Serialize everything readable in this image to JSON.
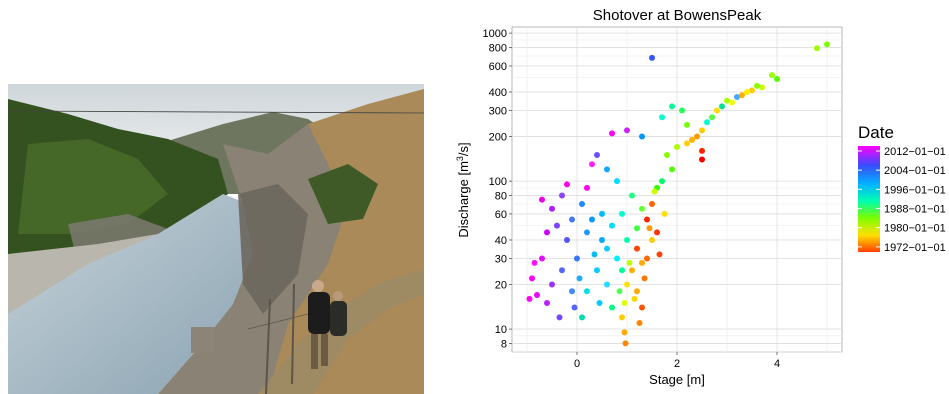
{
  "photo": {
    "colors": {
      "sky": "#dfe3e6",
      "river": "#a9bcc8",
      "forest": "#3b5a2a",
      "cliff": "#8b8478",
      "grass": "#a88a55"
    }
  },
  "chart_data": {
    "type": "scatter",
    "title": "Shotover at BowensPeak",
    "xlabel": "Stage [m]",
    "ylabel_main": "Discharge  [m",
    "ylabel_sup": "3",
    "ylabel_end": "/s]",
    "yscale": "log",
    "xlim": [
      -1.3,
      5.3
    ],
    "ylim": [
      7,
      1100
    ],
    "x_ticks": [
      0,
      2,
      4
    ],
    "x_tick_labels": [
      "0",
      "2",
      "4"
    ],
    "y_ticks": [
      8,
      10,
      20,
      30,
      40,
      60,
      80,
      100,
      200,
      300,
      400,
      600,
      800,
      1000
    ],
    "y_tick_labels": [
      "8",
      "10",
      "20",
      "30",
      "40",
      "60",
      "80",
      "100",
      "200",
      "300",
      "400",
      "600",
      "800",
      "1000"
    ],
    "grid": true,
    "legend": {
      "title": "Date",
      "placement": "right",
      "labels": [
        "2012−01−01",
        "2004−01−01",
        "1996−01−01",
        "1988−01−01",
        "1980−01−01",
        "1972−01−01"
      ],
      "gradient": [
        "#ff00ff",
        "#3b4bff",
        "#00b3ff",
        "#00ffb0",
        "#7dff00",
        "#ffe000",
        "#ff4000"
      ]
    },
    "points": [
      {
        "x": 5.0,
        "y": 840,
        "c": "#7dff00"
      },
      {
        "x": 4.8,
        "y": 790,
        "c": "#9dff00"
      },
      {
        "x": 4.0,
        "y": 490,
        "c": "#55ff00"
      },
      {
        "x": 3.9,
        "y": 520,
        "c": "#9dff00"
      },
      {
        "x": 3.7,
        "y": 430,
        "c": "#ccff00"
      },
      {
        "x": 3.5,
        "y": 410,
        "c": "#ffcc00"
      },
      {
        "x": 3.3,
        "y": 380,
        "c": "#ffb000"
      },
      {
        "x": 3.2,
        "y": 370,
        "c": "#44aaff"
      },
      {
        "x": 3.0,
        "y": 350,
        "c": "#aaff00"
      },
      {
        "x": 2.9,
        "y": 320,
        "c": "#00e38b"
      },
      {
        "x": 2.7,
        "y": 270,
        "c": "#55ff44"
      },
      {
        "x": 2.6,
        "y": 250,
        "c": "#00ffd0"
      },
      {
        "x": 2.5,
        "y": 220,
        "c": "#ffcc00"
      },
      {
        "x": 2.4,
        "y": 200,
        "c": "#ff9900"
      },
      {
        "x": 2.5,
        "y": 160,
        "c": "#ff2200"
      },
      {
        "x": 2.5,
        "y": 140,
        "c": "#ff0000"
      },
      {
        "x": 2.3,
        "y": 190,
        "c": "#ffb000"
      },
      {
        "x": 2.2,
        "y": 180,
        "c": "#ffd000"
      },
      {
        "x": 2.1,
        "y": 300,
        "c": "#22ff55"
      },
      {
        "x": 1.9,
        "y": 320,
        "c": "#00ff99"
      },
      {
        "x": 1.7,
        "y": 270,
        "c": "#00ffcc"
      },
      {
        "x": 1.5,
        "y": 680,
        "c": "#3355ff"
      },
      {
        "x": 1.3,
        "y": 200,
        "c": "#0099ff"
      },
      {
        "x": 1.0,
        "y": 220,
        "c": "#cc22ff"
      },
      {
        "x": 0.7,
        "y": 210,
        "c": "#ff00ff"
      },
      {
        "x": 0.3,
        "y": 130,
        "c": "#ff22ff"
      },
      {
        "x": 0.2,
        "y": 90,
        "c": "#ff00ee"
      },
      {
        "x": 0.4,
        "y": 150,
        "c": "#6655ff"
      },
      {
        "x": 0.6,
        "y": 120,
        "c": "#11aaff"
      },
      {
        "x": 0.8,
        "y": 100,
        "c": "#00ddff"
      },
      {
        "x": 1.9,
        "y": 120,
        "c": "#55ff00"
      },
      {
        "x": 1.7,
        "y": 100,
        "c": "#00ff66"
      },
      {
        "x": 1.6,
        "y": 90,
        "c": "#33ff00"
      },
      {
        "x": 1.8,
        "y": 150,
        "c": "#88ff00"
      },
      {
        "x": 1.5,
        "y": 70,
        "c": "#ff6600"
      },
      {
        "x": 1.4,
        "y": 55,
        "c": "#ff2200"
      },
      {
        "x": 1.2,
        "y": 35,
        "c": "#ff4400"
      },
      {
        "x": 1.1,
        "y": 25,
        "c": "#ffb000"
      },
      {
        "x": 1.0,
        "y": 20,
        "c": "#ffe000"
      },
      {
        "x": 0.95,
        "y": 15,
        "c": "#e0ff00"
      },
      {
        "x": 0.9,
        "y": 12,
        "c": "#ffcc00"
      },
      {
        "x": 0.95,
        "y": 9.5,
        "c": "#ffaa00"
      },
      {
        "x": 0.97,
        "y": 8,
        "c": "#ff8800"
      },
      {
        "x": 1.3,
        "y": 14,
        "c": "#ff5500"
      },
      {
        "x": 1.25,
        "y": 11,
        "c": "#ff8800"
      },
      {
        "x": 1.6,
        "y": 45,
        "c": "#ff3300"
      },
      {
        "x": 1.4,
        "y": 30,
        "c": "#ff6600"
      },
      {
        "x": 1.2,
        "y": 18,
        "c": "#ffaa00"
      },
      {
        "x": 0.9,
        "y": 25,
        "c": "#00ff99"
      },
      {
        "x": 0.8,
        "y": 30,
        "c": "#00eeff"
      },
      {
        "x": 0.5,
        "y": 40,
        "c": "#00aaff"
      },
      {
        "x": 0.4,
        "y": 25,
        "c": "#00ccff"
      },
      {
        "x": 0.2,
        "y": 18,
        "c": "#00e0e0"
      },
      {
        "x": 0.1,
        "y": 12,
        "c": "#00ddaa"
      },
      {
        "x": 0.7,
        "y": 14,
        "c": "#00ff88"
      },
      {
        "x": 0.6,
        "y": 20,
        "c": "#22ddff"
      },
      {
        "x": 0.0,
        "y": 30,
        "c": "#3377ff"
      },
      {
        "x": -0.2,
        "y": 40,
        "c": "#5555ff"
      },
      {
        "x": -0.4,
        "y": 50,
        "c": "#7a44ff"
      },
      {
        "x": -0.3,
        "y": 25,
        "c": "#5566ff"
      },
      {
        "x": -0.1,
        "y": 18,
        "c": "#4488ff"
      },
      {
        "x": -0.5,
        "y": 20,
        "c": "#9933ff"
      },
      {
        "x": -0.6,
        "y": 15,
        "c": "#bb22ff"
      },
      {
        "x": -0.8,
        "y": 17,
        "c": "#ee00ff"
      },
      {
        "x": -0.9,
        "y": 22,
        "c": "#ff00ff"
      },
      {
        "x": -0.7,
        "y": 30,
        "c": "#dd11ff"
      },
      {
        "x": -0.6,
        "y": 45,
        "c": "#cc00ff"
      },
      {
        "x": -0.7,
        "y": 75,
        "c": "#ee00ee"
      },
      {
        "x": -0.5,
        "y": 65,
        "c": "#aa22ff"
      },
      {
        "x": -0.3,
        "y": 80,
        "c": "#8844ff"
      },
      {
        "x": -0.2,
        "y": 95,
        "c": "#ff00ee"
      },
      {
        "x": 0.1,
        "y": 70,
        "c": "#2288ff"
      },
      {
        "x": 0.3,
        "y": 55,
        "c": "#0099ff"
      },
      {
        "x": 0.5,
        "y": 60,
        "c": "#00bbff"
      },
      {
        "x": 0.7,
        "y": 50,
        "c": "#00ddff"
      },
      {
        "x": 0.9,
        "y": 60,
        "c": "#00ffcc"
      },
      {
        "x": 1.1,
        "y": 80,
        "c": "#22ff88"
      },
      {
        "x": 1.3,
        "y": 65,
        "c": "#66ff33"
      },
      {
        "x": 1.5,
        "y": 40,
        "c": "#ffcc00"
      },
      {
        "x": 1.35,
        "y": 22,
        "c": "#ff7700"
      },
      {
        "x": 1.15,
        "y": 16,
        "c": "#ffd700"
      },
      {
        "x": 1.05,
        "y": 28,
        "c": "#bbff00"
      },
      {
        "x": 0.85,
        "y": 18,
        "c": "#55ff55"
      },
      {
        "x": 0.45,
        "y": 15,
        "c": "#00ccff"
      },
      {
        "x": -0.05,
        "y": 14,
        "c": "#5566ff"
      },
      {
        "x": -0.35,
        "y": 12,
        "c": "#7744ff"
      },
      {
        "x": -0.95,
        "y": 16,
        "c": "#ff00ff"
      },
      {
        "x": -0.85,
        "y": 28,
        "c": "#ff11ff"
      },
      {
        "x": 1.65,
        "y": 32,
        "c": "#ff4400"
      },
      {
        "x": 1.45,
        "y": 48,
        "c": "#ff9900"
      },
      {
        "x": 1.75,
        "y": 60,
        "c": "#ffdd00"
      },
      {
        "x": 1.55,
        "y": 85,
        "c": "#ccff00"
      },
      {
        "x": 2.0,
        "y": 170,
        "c": "#aaff00"
      },
      {
        "x": 2.2,
        "y": 240,
        "c": "#77ff00"
      },
      {
        "x": 2.8,
        "y": 300,
        "c": "#ffdd00"
      },
      {
        "x": 3.1,
        "y": 340,
        "c": "#eeff00"
      },
      {
        "x": 3.4,
        "y": 400,
        "c": "#ffee00"
      },
      {
        "x": 3.6,
        "y": 440,
        "c": "#88ff00"
      },
      {
        "x": 0.6,
        "y": 35,
        "c": "#11ccff"
      },
      {
        "x": 0.2,
        "y": 45,
        "c": "#2299ff"
      },
      {
        "x": -0.1,
        "y": 55,
        "c": "#4477ff"
      },
      {
        "x": 0.05,
        "y": 22,
        "c": "#22aaff"
      },
      {
        "x": 0.35,
        "y": 32,
        "c": "#00bbee"
      },
      {
        "x": 1.0,
        "y": 40,
        "c": "#00ffaa"
      },
      {
        "x": 1.2,
        "y": 48,
        "c": "#44ff44"
      },
      {
        "x": 1.3,
        "y": 28,
        "c": "#ffaa00"
      }
    ]
  }
}
